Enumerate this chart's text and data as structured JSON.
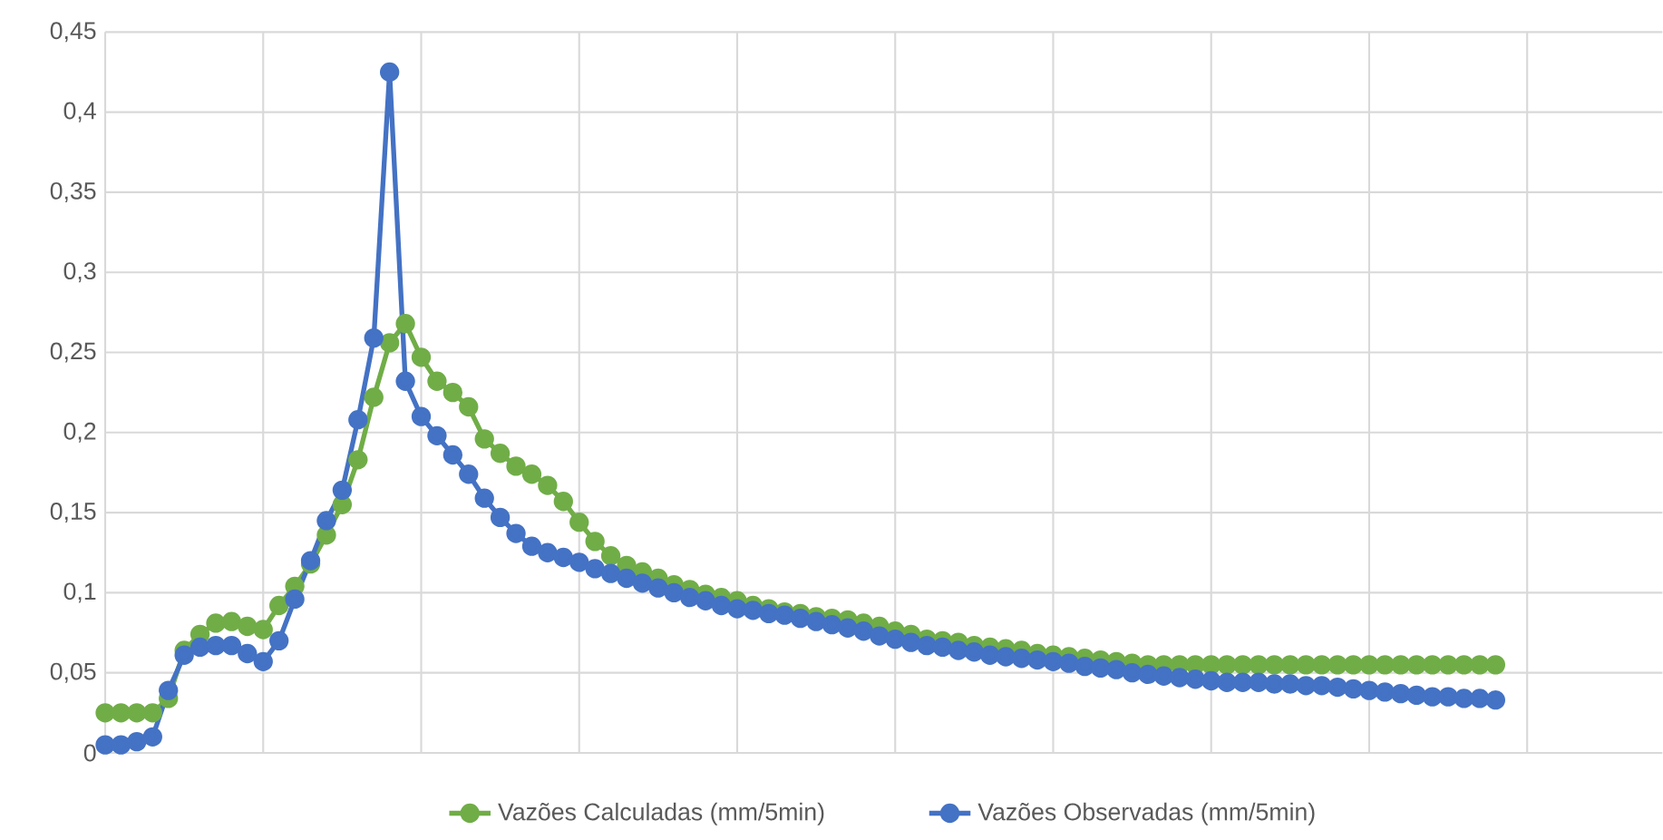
{
  "chart_data": {
    "type": "line",
    "marker": "circle",
    "line_style": "solid",
    "grid": true,
    "legend": "bottom",
    "tick_labels": "y",
    "categories": [
      null,
      null,
      null,
      null,
      null,
      null,
      null,
      null,
      null,
      null,
      null,
      null,
      null,
      null,
      null,
      null,
      null,
      null,
      null,
      null,
      null,
      null,
      null,
      null,
      null,
      null,
      null,
      null,
      null,
      null,
      null,
      null,
      null,
      null,
      null,
      null,
      null,
      null,
      null,
      null,
      null,
      null,
      null,
      null,
      null,
      null,
      null,
      null,
      null,
      null,
      null,
      null,
      null,
      null,
      null,
      null,
      null,
      null,
      null,
      null,
      null,
      null,
      null,
      null,
      null,
      null,
      null,
      null,
      null,
      null,
      null,
      null,
      null,
      null,
      null,
      null,
      null,
      null,
      null,
      null,
      null,
      null,
      null,
      null,
      null,
      null,
      null,
      null,
      null
    ],
    "ylim": [
      0,
      0.45
    ],
    "yticks": [
      0,
      {
        "value": 0.05,
        "label": "0,05"
      },
      {
        "value": 0.1,
        "label": "0,1"
      },
      {
        "value": 0.15,
        "label": "0,15"
      },
      {
        "value": 0.2,
        "label": "0,2"
      },
      {
        "value": 0.25,
        "label": "0,25"
      },
      {
        "value": 0.3,
        "label": "0,3"
      },
      {
        "value": 0.35,
        "label": "0,35"
      },
      {
        "value": 0.4,
        "label": "0,4"
      },
      {
        "value": 0.45,
        "label": "0,45"
      }
    ],
    "series": [
      {
        "name": "Vazões Calculadas (mm/5min)",
        "color": "#70ad47",
        "values": [
          0.025,
          0.025,
          0.025,
          0.025,
          0.034,
          0.064,
          0.074,
          0.081,
          0.082,
          0.079,
          0.077,
          0.092,
          0.104,
          0.118,
          0.136,
          0.155,
          0.183,
          0.222,
          0.256,
          0.268,
          0.247,
          0.232,
          0.225,
          0.216,
          0.196,
          0.187,
          0.179,
          0.174,
          0.167,
          0.157,
          0.144,
          0.132,
          0.123,
          0.117,
          0.113,
          0.109,
          0.105,
          0.102,
          0.099,
          0.097,
          0.095,
          0.092,
          0.09,
          0.088,
          0.087,
          0.085,
          0.084,
          0.083,
          0.081,
          0.079,
          0.076,
          0.074,
          0.071,
          0.07,
          0.069,
          0.067,
          0.066,
          0.065,
          0.064,
          0.062,
          0.061,
          0.06,
          0.059,
          0.058,
          0.057,
          0.056,
          0.055,
          0.055,
          0.055,
          0.055,
          0.055,
          0.055,
          0.055,
          0.055,
          0.055,
          0.055,
          0.055,
          0.055,
          0.055,
          0.055,
          0.055,
          0.055,
          0.055,
          0.055,
          0.055,
          0.055,
          0.055,
          0.055,
          0.055
        ]
      },
      {
        "name": "Vazões Observadas (mm/5min)",
        "color": "#4472c4",
        "values": [
          0.005,
          0.005,
          0.007,
          0.01,
          0.039,
          0.061,
          0.066,
          0.067,
          0.067,
          0.062,
          0.057,
          0.07,
          0.096,
          0.12,
          0.145,
          0.164,
          0.208,
          0.259,
          0.425,
          0.232,
          0.21,
          0.198,
          0.186,
          0.174,
          0.159,
          0.147,
          0.137,
          0.129,
          0.125,
          0.122,
          0.119,
          0.115,
          0.112,
          0.109,
          0.106,
          0.103,
          0.1,
          0.097,
          0.095,
          0.092,
          0.09,
          0.089,
          0.087,
          0.086,
          0.084,
          0.082,
          0.08,
          0.078,
          0.076,
          0.073,
          0.071,
          0.069,
          0.067,
          0.066,
          0.064,
          0.063,
          0.061,
          0.06,
          0.059,
          0.058,
          0.057,
          0.056,
          0.054,
          0.053,
          0.052,
          0.05,
          0.049,
          0.048,
          0.047,
          0.046,
          0.045,
          0.044,
          0.044,
          0.044,
          0.043,
          0.043,
          0.042,
          0.042,
          0.041,
          0.04,
          0.039,
          0.038,
          0.037,
          0.036,
          0.035,
          0.035,
          0.034,
          0.034,
          0.033
        ]
      }
    ]
  }
}
